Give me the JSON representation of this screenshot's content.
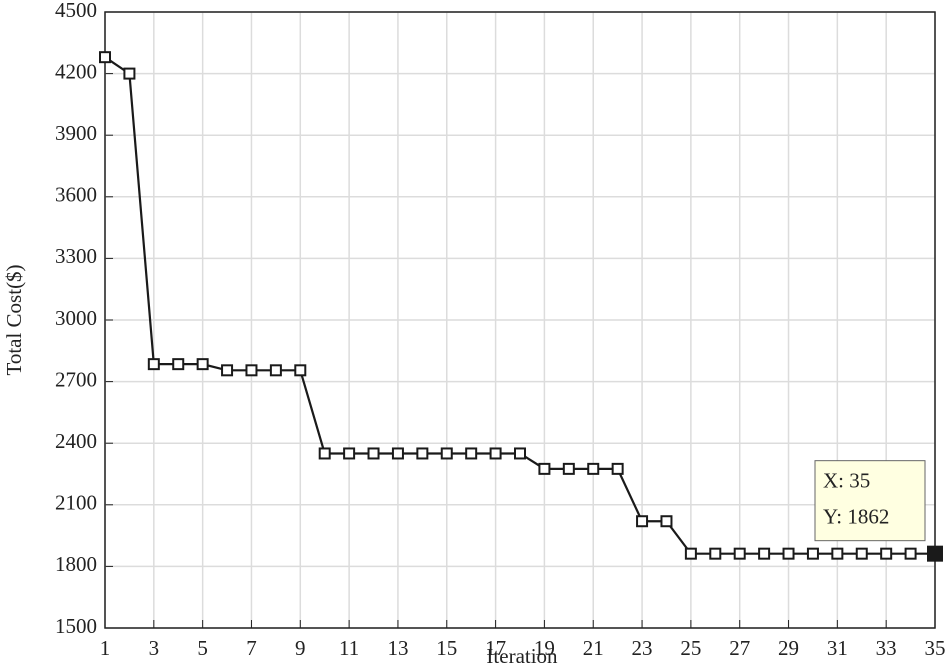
{
  "chart_data": {
    "type": "line",
    "x_label": "Iteration",
    "y_label": "Total Cost($)",
    "x": [
      1,
      2,
      3,
      4,
      5,
      6,
      7,
      8,
      9,
      10,
      11,
      12,
      13,
      14,
      15,
      16,
      17,
      18,
      19,
      20,
      21,
      22,
      23,
      24,
      25,
      26,
      27,
      28,
      29,
      30,
      31,
      32,
      33,
      34,
      35
    ],
    "values": [
      4280,
      4200,
      2785,
      2785,
      2785,
      2755,
      2755,
      2755,
      2755,
      2350,
      2350,
      2350,
      2350,
      2350,
      2350,
      2350,
      2350,
      2350,
      2275,
      2275,
      2275,
      2275,
      2020,
      2020,
      1862,
      1862,
      1862,
      1862,
      1862,
      1862,
      1862,
      1862,
      1862,
      1862,
      1862
    ],
    "color": "#1a1a1a",
    "xlim": [
      1,
      35
    ],
    "xticks": [
      1,
      3,
      5,
      7,
      9,
      11,
      13,
      15,
      17,
      19,
      21,
      23,
      25,
      27,
      29,
      31,
      33,
      35
    ],
    "ylim": [
      1500,
      4500
    ],
    "yticks": [
      1500,
      1800,
      2100,
      2400,
      2700,
      3000,
      3300,
      3600,
      3900,
      4200,
      4500
    ],
    "grid": true,
    "datatip": [
      "X: 35",
      "Y: 1862"
    ]
  }
}
